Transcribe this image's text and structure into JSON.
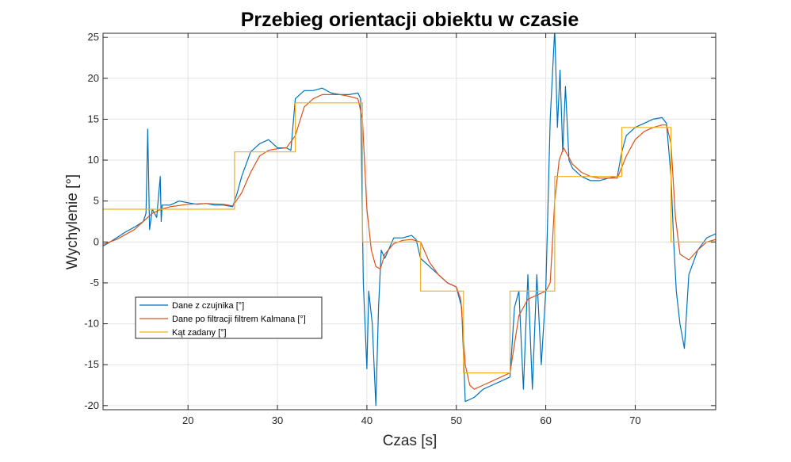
{
  "chart_data": {
    "type": "line",
    "title": "Przebieg orientacji obiektu w czasie",
    "xlabel": "Czas [s]",
    "ylabel": "Wychylenie [°]",
    "xlim": [
      10.5,
      79
    ],
    "ylim": [
      -20.5,
      25.5
    ],
    "xticks": [
      20,
      30,
      40,
      50,
      60,
      70
    ],
    "yticks": [
      -20,
      -15,
      -10,
      -5,
      0,
      5,
      10,
      15,
      20,
      25
    ],
    "grid": true,
    "legend_position": "lower-left",
    "series": [
      {
        "name": "Dane z czujnika [°]",
        "color": "#0072BD",
        "x": [
          10.5,
          11,
          12,
          13,
          14,
          15,
          15.3,
          15.5,
          15.7,
          16,
          16.5,
          16.9,
          17,
          17.1,
          17.5,
          18,
          19,
          20,
          21,
          22,
          23,
          24,
          25,
          25.5,
          26,
          27,
          28,
          29,
          30,
          31,
          31.5,
          32,
          33,
          34,
          35,
          36,
          37,
          38,
          39,
          39.3,
          39.6,
          40,
          40.2,
          40.6,
          41,
          41.3,
          41.6,
          42,
          43,
          44,
          45,
          45.5,
          46,
          47,
          48,
          49,
          50,
          50.6,
          51,
          52,
          53,
          54,
          55,
          56,
          56.5,
          57,
          57.5,
          58,
          58.5,
          59,
          59.5,
          60,
          60.5,
          61,
          61.3,
          61.6,
          61.9,
          62.2,
          62.6,
          63,
          64,
          65,
          66,
          67,
          68,
          68.5,
          69,
          70,
          71,
          72,
          73,
          73.5,
          74,
          74.3,
          74.6,
          75,
          75.5,
          76,
          77,
          78,
          79
        ],
        "y": [
          -0.5,
          -0.2,
          0.5,
          1.2,
          1.8,
          2.5,
          3.5,
          13.8,
          1.5,
          4,
          3,
          8,
          2.5,
          4.5,
          4.5,
          4.5,
          5,
          4.8,
          4.6,
          4.7,
          4.5,
          4.5,
          4.3,
          6,
          8,
          11,
          12,
          12.5,
          11.5,
          11.5,
          11.2,
          17.5,
          18.5,
          18.5,
          18.8,
          18.2,
          18,
          18,
          18.2,
          17.5,
          -5,
          -15.5,
          -6,
          -10,
          -20,
          -8,
          -1,
          -2,
          0.5,
          0.5,
          0.8,
          0.3,
          -2,
          -3,
          -4,
          -5,
          -5.5,
          -8,
          -19.5,
          -19,
          -18,
          -17.5,
          -17,
          -16.5,
          -8,
          -6,
          -18,
          -4,
          -18,
          -4,
          -15,
          -6,
          15,
          26,
          14,
          21,
          11,
          19,
          10,
          9,
          8,
          7.5,
          7.5,
          7.8,
          8,
          11,
          13,
          14,
          14.5,
          15,
          15.2,
          14.5,
          8,
          0,
          -6,
          -10,
          -13,
          -4,
          -1,
          0.5,
          1
        ]
      },
      {
        "name": "Dane po filtracji filtrem Kalmana [°]",
        "color": "#D95319",
        "x": [
          10.5,
          12,
          14,
          15,
          16,
          17,
          18,
          20,
          22,
          24,
          25,
          26,
          27,
          28,
          29,
          30,
          31,
          32,
          33,
          34,
          35,
          36,
          37,
          38,
          39,
          39.5,
          40,
          40.5,
          41,
          41.5,
          42,
          43,
          44,
          45,
          46,
          47,
          48,
          49,
          50,
          50.5,
          51,
          51.5,
          52,
          53,
          54,
          55,
          56,
          57,
          58,
          59,
          60,
          60.5,
          61,
          61.5,
          62,
          62.5,
          63,
          64,
          65,
          66,
          67,
          68,
          69,
          70,
          71,
          72,
          73,
          73.5,
          74,
          74.5,
          75,
          76,
          77,
          78,
          79
        ],
        "y": [
          -0.3,
          0.3,
          1.5,
          2.5,
          3.5,
          4,
          4.3,
          4.6,
          4.7,
          4.6,
          4.4,
          6,
          8.5,
          10.5,
          11.2,
          11.4,
          11.5,
          13,
          16.5,
          17.5,
          18,
          18,
          18,
          17.8,
          17.5,
          15,
          4,
          -1,
          -3,
          -3.3,
          -1.5,
          -0.2,
          0.2,
          0.3,
          0,
          -2.5,
          -4,
          -5,
          -5.5,
          -7,
          -15,
          -17.5,
          -18,
          -17.5,
          -17,
          -16.5,
          -16,
          -9,
          -7,
          -6.5,
          -6,
          -5,
          5,
          10,
          11.5,
          10.5,
          9.5,
          8.5,
          8,
          7.8,
          7.8,
          7.8,
          10.5,
          12.5,
          13.5,
          14,
          14.3,
          14.3,
          12,
          3,
          -1.5,
          -2.2,
          -1,
          0,
          0.3
        ]
      },
      {
        "name": "Kąt zadany [°]",
        "color": "#EDB120",
        "x": [
          10.5,
          25.2,
          25.2,
          32,
          32,
          39.5,
          39.5,
          46,
          46,
          50.8,
          50.8,
          56,
          56,
          61,
          61,
          68.5,
          68.5,
          74,
          74,
          79
        ],
        "y": [
          4,
          4,
          11,
          11,
          17,
          17,
          0,
          0,
          -6,
          -6,
          -16,
          -16,
          -6,
          -6,
          8,
          8,
          14,
          14,
          0,
          0
        ]
      }
    ]
  }
}
